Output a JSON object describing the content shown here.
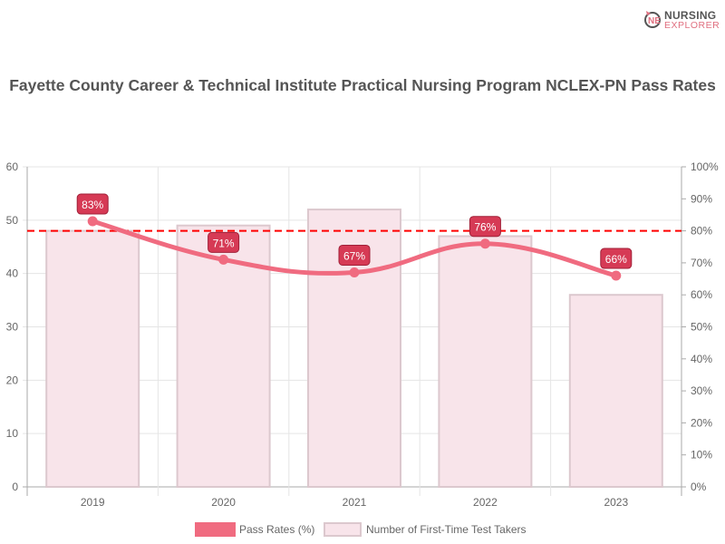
{
  "logo": {
    "line1": "NURSING",
    "line2": "EXPLORER"
  },
  "chart_data": {
    "type": "bar+line",
    "title": "Fayette County Career & Technical Institute Practical Nursing Program NCLEX-PN Pass Rates",
    "categories": [
      "2019",
      "2020",
      "2021",
      "2022",
      "2023"
    ],
    "series": [
      {
        "name": "Pass Rates (%)",
        "type": "line",
        "axis": "right",
        "values": [
          83,
          71,
          67,
          76,
          66
        ],
        "labels": [
          "83%",
          "71%",
          "67%",
          "76%",
          "66%"
        ],
        "color": "#f06b80"
      },
      {
        "name": "Number of First-Time Test Takers",
        "type": "bar",
        "axis": "left",
        "values": [
          48,
          49,
          52,
          47,
          36
        ],
        "color": "#f8e4ea"
      }
    ],
    "left_axis": {
      "ylim": [
        0,
        60
      ],
      "ticks": [
        "0",
        "10",
        "20",
        "30",
        "40",
        "50",
        "60"
      ]
    },
    "right_axis": {
      "ylim": [
        0,
        100
      ],
      "ticks": [
        "0%",
        "10%",
        "20%",
        "30%",
        "40%",
        "50%",
        "60%",
        "70%",
        "80%",
        "90%",
        "100%"
      ]
    },
    "reference_line": {
      "value": 80,
      "axis": "right",
      "color": "#ff0000",
      "style": "dashed"
    },
    "grid": true,
    "legend": "bottom"
  }
}
